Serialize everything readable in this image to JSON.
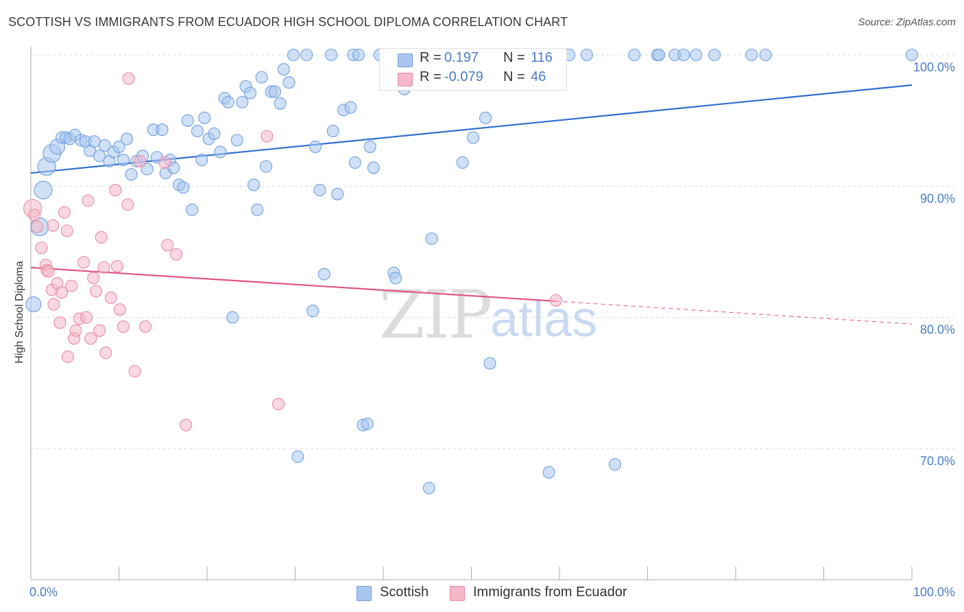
{
  "title": "SCOTTISH VS IMMIGRANTS FROM ECUADOR HIGH SCHOOL DIPLOMA CORRELATION CHART",
  "source": "Source: ZipAtlas.com",
  "watermark": {
    "zip": "ZIP",
    "atlas": "atlas"
  },
  "legend": {
    "rows": [
      {
        "r_label": "R =",
        "r_value": "0.197",
        "n_label": "N =",
        "n_value": "116",
        "color": "#a9c6ef"
      },
      {
        "r_label": "R =",
        "r_value": "-0.079",
        "n_label": "N =",
        "n_value": "46",
        "color": "#f5b8c8"
      }
    ]
  },
  "bottom_legend": [
    {
      "label": "Scottish",
      "color": "#a9c6ef"
    },
    {
      "label": "Immigrants from Ecuador",
      "color": "#f5b8c8"
    }
  ],
  "chart_data": {
    "type": "scatter",
    "title": "SCOTTISH VS IMMIGRANTS FROM ECUADOR HIGH SCHOOL DIPLOMA CORRELATION CHART",
    "xlabel": "",
    "ylabel": "High School Diploma",
    "xlim": [
      0,
      100
    ],
    "ylim": [
      60,
      100
    ],
    "x_tick_labels": [
      "0.0%",
      "100.0%"
    ],
    "y_tick_labels": [
      "100.0%",
      "90.0%",
      "80.0%",
      "70.0%"
    ],
    "y_tick_values": [
      100,
      90,
      80,
      70
    ],
    "grid": "horizontal dashed",
    "legend_position": "top-center",
    "series": [
      {
        "name": "Scottish",
        "color": "#6fa0e0",
        "fill": "#a9c6ef",
        "trend": {
          "x": [
            0,
            100
          ],
          "y": [
            91.0,
            97.7
          ],
          "color": "#2f6fd0"
        },
        "points": [
          [
            1.4,
            89.7,
            "L"
          ],
          [
            1.8,
            91.5,
            "L"
          ],
          [
            2.4,
            92.5,
            "L"
          ],
          [
            1.0,
            86.9,
            "L"
          ],
          [
            0.3,
            81.0,
            "M"
          ],
          [
            3.0,
            93.0,
            "M"
          ],
          [
            3.5,
            93.7
          ],
          [
            4.0,
            93.7
          ],
          [
            4.4,
            93.6
          ],
          [
            5.0,
            93.9
          ],
          [
            5.7,
            93.5
          ],
          [
            6.2,
            93.4
          ],
          [
            6.7,
            92.7
          ],
          [
            7.2,
            93.4
          ],
          [
            7.8,
            92.3
          ],
          [
            8.4,
            93.1
          ],
          [
            8.9,
            91.9
          ],
          [
            9.4,
            92.6
          ],
          [
            10.0,
            93.0
          ],
          [
            10.5,
            92.0
          ],
          [
            10.9,
            93.6
          ],
          [
            11.4,
            90.9
          ],
          [
            12.0,
            91.9
          ],
          [
            12.7,
            92.3
          ],
          [
            13.2,
            91.3
          ],
          [
            13.9,
            94.3
          ],
          [
            14.3,
            92.2
          ],
          [
            14.9,
            94.3
          ],
          [
            15.3,
            91.0
          ],
          [
            15.8,
            92.0
          ],
          [
            16.2,
            91.4
          ],
          [
            16.8,
            90.1
          ],
          [
            17.3,
            89.9
          ],
          [
            17.8,
            95.0
          ],
          [
            18.3,
            88.2
          ],
          [
            18.9,
            94.2
          ],
          [
            19.4,
            92.0
          ],
          [
            19.7,
            95.2
          ],
          [
            20.2,
            93.6
          ],
          [
            20.8,
            94.0
          ],
          [
            21.5,
            92.6
          ],
          [
            22.0,
            96.7
          ],
          [
            22.4,
            96.4
          ],
          [
            22.9,
            80.0
          ],
          [
            23.4,
            93.5
          ],
          [
            24.0,
            96.4
          ],
          [
            24.4,
            97.6
          ],
          [
            24.9,
            97.1
          ],
          [
            25.3,
            90.1
          ],
          [
            25.7,
            88.2
          ],
          [
            26.2,
            98.3
          ],
          [
            26.7,
            91.5
          ],
          [
            27.3,
            97.2
          ],
          [
            27.7,
            97.2
          ],
          [
            28.3,
            96.3
          ],
          [
            28.7,
            98.9
          ],
          [
            29.3,
            97.9
          ],
          [
            29.8,
            100.0
          ],
          [
            30.3,
            69.4
          ],
          [
            31.3,
            100.0
          ],
          [
            32.0,
            80.5
          ],
          [
            32.3,
            93.0
          ],
          [
            32.8,
            89.7
          ],
          [
            33.3,
            83.3
          ],
          [
            34.1,
            100.0
          ],
          [
            34.3,
            94.2
          ],
          [
            34.8,
            89.4
          ],
          [
            35.5,
            95.8
          ],
          [
            36.3,
            96.0
          ],
          [
            36.6,
            100.0
          ],
          [
            36.8,
            91.8
          ],
          [
            37.2,
            100.0
          ],
          [
            37.7,
            71.8
          ],
          [
            38.2,
            71.9
          ],
          [
            38.5,
            93.0
          ],
          [
            38.9,
            91.4
          ],
          [
            39.6,
            100.0
          ],
          [
            40.8,
            100.0
          ],
          [
            41.2,
            83.4
          ],
          [
            41.4,
            83.0
          ],
          [
            42.0,
            100.0
          ],
          [
            42.4,
            97.4
          ],
          [
            44.0,
            98.6
          ],
          [
            44.7,
            100.0
          ],
          [
            45.2,
            67.0
          ],
          [
            45.5,
            86.0
          ],
          [
            47.6,
            100.0
          ],
          [
            48.5,
            100.0
          ],
          [
            49.0,
            91.8
          ],
          [
            50.2,
            93.7
          ],
          [
            50.5,
            100.0
          ],
          [
            51.6,
            95.2
          ],
          [
            52.1,
            76.5
          ],
          [
            53.5,
            100.0
          ],
          [
            54.0,
            100.0
          ],
          [
            55.4,
            100.0
          ],
          [
            56.5,
            98.0
          ],
          [
            57.2,
            100.0
          ],
          [
            58.4,
            100.0
          ],
          [
            58.8,
            68.2
          ],
          [
            59.1,
            100.0
          ],
          [
            61.1,
            100.0
          ],
          [
            63.1,
            100.0
          ],
          [
            66.3,
            68.8
          ],
          [
            68.5,
            100.0
          ],
          [
            71.1,
            100.0
          ],
          [
            71.3,
            100.0
          ],
          [
            73.1,
            100.0
          ],
          [
            74.1,
            100.0
          ],
          [
            75.5,
            100.0
          ],
          [
            77.6,
            100.0
          ],
          [
            81.8,
            100.0
          ],
          [
            83.4,
            100.0
          ],
          [
            100.0,
            100.0
          ]
        ]
      },
      {
        "name": "Immigrants from Ecuador",
        "color": "#e88aa6",
        "fill": "#f5b8c8",
        "trend": {
          "x": [
            0,
            100
          ],
          "y": [
            83.8,
            79.5
          ],
          "solid_until_x": 59.6,
          "color": "#e05585"
        },
        "points": [
          [
            0.2,
            88.3,
            "L"
          ],
          [
            0.4,
            87.8
          ],
          [
            0.7,
            86.9
          ],
          [
            1.2,
            85.3
          ],
          [
            1.7,
            84.0
          ],
          [
            1.8,
            83.6
          ],
          [
            2.0,
            83.5
          ],
          [
            2.4,
            82.1
          ],
          [
            2.5,
            87.0
          ],
          [
            2.6,
            81.0
          ],
          [
            3.0,
            82.6
          ],
          [
            3.3,
            79.6
          ],
          [
            3.5,
            81.9
          ],
          [
            3.8,
            88.0
          ],
          [
            4.1,
            86.6
          ],
          [
            4.2,
            77.0
          ],
          [
            4.6,
            82.4
          ],
          [
            4.9,
            78.4
          ],
          [
            5.1,
            79.0
          ],
          [
            5.5,
            79.9
          ],
          [
            6.0,
            84.2
          ],
          [
            6.3,
            80.0
          ],
          [
            6.5,
            88.9
          ],
          [
            6.8,
            78.4
          ],
          [
            7.1,
            83.0
          ],
          [
            7.4,
            82.0
          ],
          [
            7.8,
            79.0
          ],
          [
            8.0,
            86.1
          ],
          [
            8.3,
            83.8
          ],
          [
            8.5,
            77.3
          ],
          [
            9.1,
            81.5
          ],
          [
            9.6,
            89.7
          ],
          [
            9.8,
            83.9
          ],
          [
            10.1,
            80.6
          ],
          [
            10.5,
            79.3
          ],
          [
            11.0,
            88.6
          ],
          [
            11.1,
            98.2
          ],
          [
            11.8,
            75.9
          ],
          [
            12.4,
            91.9
          ],
          [
            13.0,
            79.3
          ],
          [
            15.2,
            91.8
          ],
          [
            15.5,
            85.5
          ],
          [
            16.5,
            84.8
          ],
          [
            17.6,
            71.8
          ],
          [
            26.8,
            93.8
          ],
          [
            28.1,
            73.4
          ],
          [
            59.6,
            81.3
          ]
        ]
      }
    ]
  }
}
